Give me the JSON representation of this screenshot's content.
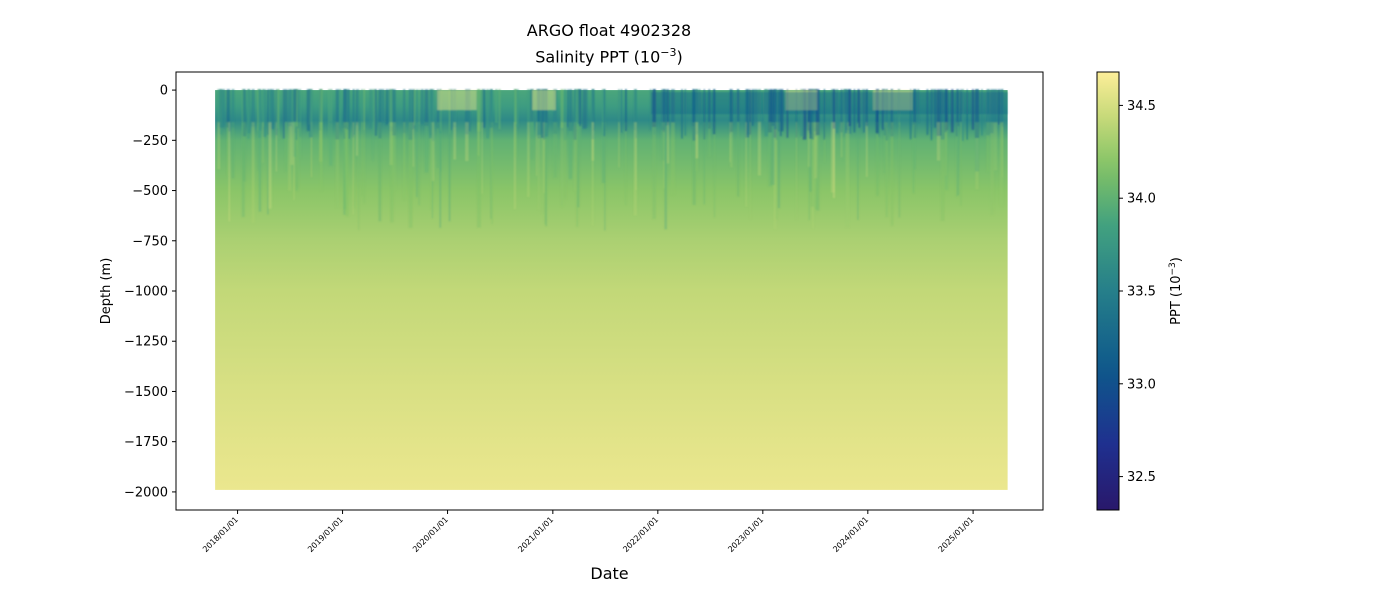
{
  "chart_data": {
    "type": "heatmap",
    "title": "ARGO float 4902328",
    "subtitle_base": "Salinity PPT (10",
    "subtitle_exp": "−3",
    "subtitle_close": ")",
    "xlabel": "Date",
    "ylabel": "Depth (m)",
    "x_range": [
      "2017-06-01",
      "2025-09-01"
    ],
    "data_x_range": [
      "2017-10-15",
      "2025-05-01"
    ],
    "x_ticks": [
      "2018/01/01",
      "2019/01/01",
      "2020/01/01",
      "2021/01/01",
      "2022/01/01",
      "2023/01/01",
      "2024/01/01",
      "2025/01/01"
    ],
    "ylim": [
      -2090,
      90
    ],
    "y_ticks": [
      0,
      -250,
      -500,
      -750,
      -1000,
      -1250,
      -1500,
      -1750,
      -2000
    ],
    "depth_range": [
      -1990,
      0
    ],
    "colorbar": {
      "label_base": "PPT (10",
      "label_exp": "−3",
      "label_close": ")",
      "range": [
        32.32,
        34.68
      ],
      "ticks": [
        32.5,
        33.0,
        33.5,
        34.0,
        34.5
      ],
      "colormap": "haline"
    },
    "depth_profile": [
      {
        "depth": 0,
        "salinity": 33.9
      },
      {
        "depth": -80,
        "salinity": 33.8
      },
      {
        "depth": -150,
        "salinity": 33.6
      },
      {
        "depth": -250,
        "salinity": 34.0
      },
      {
        "depth": -500,
        "salinity": 34.2
      },
      {
        "depth": -750,
        "salinity": 34.33
      },
      {
        "depth": -1000,
        "salinity": 34.42
      },
      {
        "depth": -1500,
        "salinity": 34.52
      },
      {
        "depth": -2000,
        "salinity": 34.6
      }
    ]
  }
}
